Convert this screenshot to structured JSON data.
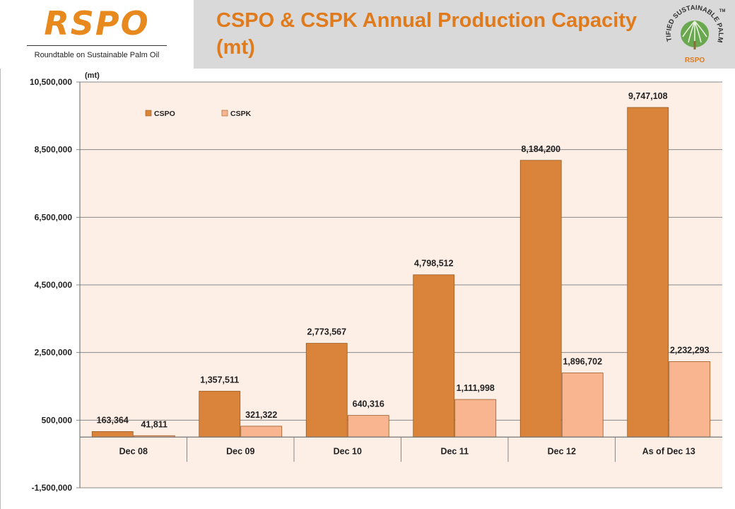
{
  "brand": {
    "logo": "RSPO",
    "tagline": "Roundtable on Sustainable Palm Oil"
  },
  "title": "CSPO & CSPK Annual Production Capacity (mt)",
  "seal": {
    "ring_text": "CERTIFIED SUSTAINABLE PALM OIL",
    "center": "RSPO",
    "tm": "TM",
    "icon": "palm-tree-icon"
  },
  "chart_data": {
    "type": "bar",
    "ylabel": "(mt)",
    "categories": [
      "Dec 08",
      "Dec 09",
      "Dec 10",
      "Dec 11",
      "Dec 12",
      "As of Dec 13"
    ],
    "series": [
      {
        "name": "CSPO",
        "values": [
          163364,
          1357511,
          2773567,
          4798512,
          8184200,
          9747108
        ],
        "labels": [
          "163,364",
          "1,357,511",
          "2,773,567",
          "4,798,512",
          "8,184,200",
          "9,747,108"
        ]
      },
      {
        "name": "CSPK",
        "values": [
          41811,
          321322,
          640316,
          1111998,
          1896702,
          2232293
        ],
        "labels": [
          "41,811",
          "321,322",
          "640,316",
          "1,111,998",
          "1,896,702",
          "2,232,293"
        ]
      }
    ],
    "ylim": [
      -1500000,
      10500000
    ],
    "yticks": [
      -1500000,
      500000,
      2500000,
      4500000,
      6500000,
      8500000,
      10500000
    ],
    "ytick_labels": [
      "-1,500,000",
      "500,000",
      "2,500,000",
      "4,500,000",
      "6,500,000",
      "8,500,000",
      "10,500,000"
    ],
    "legend_position": "top-left",
    "grid": true,
    "colors": {
      "CSPO": "#d9843a",
      "CSPK": "#f8b590",
      "plot_bg": "#fdeee6",
      "grid": "#888888"
    }
  }
}
